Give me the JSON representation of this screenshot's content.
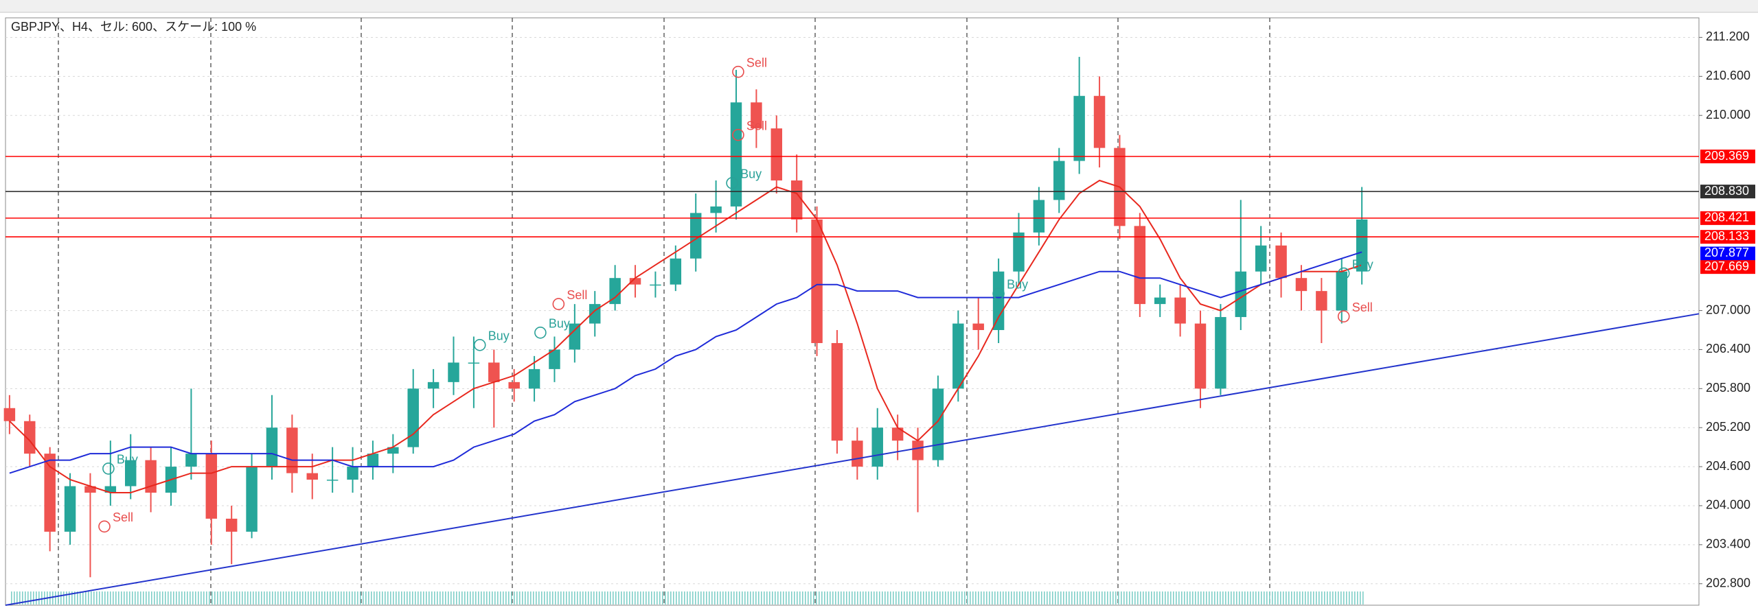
{
  "chart_data": {
    "type": "candlestick",
    "title": "GBPJPY、H4、セル: 600、スケール: 100 %",
    "xlim": [
      -0.2,
      83.7
    ],
    "ylim": [
      202.47,
      211.5
    ],
    "yticks": [
      {
        "value": 211.2,
        "label": "211.200"
      },
      {
        "value": 210.6,
        "label": "210.600"
      },
      {
        "value": 210,
        "label": "210.000"
      },
      {
        "value": 207,
        "label": "207.000"
      },
      {
        "value": 206.4,
        "label": "206.400"
      },
      {
        "value": 205.8,
        "label": "205.800"
      },
      {
        "value": 205.2,
        "label": "205.200"
      },
      {
        "value": 204.6,
        "label": "204.600"
      },
      {
        "value": 204,
        "label": "204.000"
      },
      {
        "value": 203.4,
        "label": "203.400"
      },
      {
        "value": 202.8,
        "label": "202.800"
      }
    ],
    "grid": true,
    "up_color": "#26a69a",
    "down_color": "#ef5350",
    "candles": [
      [
        205.5,
        205.7,
        205.1,
        205.3
      ],
      [
        205.3,
        205.4,
        204.6,
        204.8
      ],
      [
        204.8,
        204.9,
        203.3,
        203.6
      ],
      [
        203.6,
        204.5,
        203.4,
        204.3
      ],
      [
        204.3,
        204.5,
        202.9,
        204.2
      ],
      [
        204.2,
        205.0,
        204.0,
        204.3
      ],
      [
        204.3,
        205.1,
        204.1,
        204.7
      ],
      [
        204.7,
        204.9,
        203.9,
        204.2
      ],
      [
        204.2,
        204.9,
        204.0,
        204.6
      ],
      [
        204.6,
        205.8,
        204.4,
        204.8
      ],
      [
        204.8,
        205.0,
        203.4,
        203.8
      ],
      [
        203.8,
        204.0,
        203.1,
        203.6
      ],
      [
        203.6,
        204.8,
        203.5,
        204.6
      ],
      [
        204.6,
        205.7,
        204.4,
        205.2
      ],
      [
        205.2,
        205.4,
        204.2,
        204.5
      ],
      [
        204.5,
        204.8,
        204.1,
        204.4
      ],
      [
        204.4,
        204.9,
        204.2,
        204.4
      ],
      [
        204.4,
        204.9,
        204.2,
        204.6
      ],
      [
        204.6,
        205.0,
        204.4,
        204.8
      ],
      [
        204.8,
        205.1,
        204.5,
        204.9
      ],
      [
        204.9,
        206.1,
        204.8,
        205.8
      ],
      [
        205.8,
        206.1,
        205.5,
        205.9
      ],
      [
        205.9,
        206.6,
        205.7,
        206.2
      ],
      [
        206.2,
        206.6,
        205.5,
        206.2
      ],
      [
        206.2,
        206.4,
        205.2,
        205.9
      ],
      [
        205.9,
        206.1,
        205.6,
        205.8
      ],
      [
        205.8,
        206.3,
        205.6,
        206.1
      ],
      [
        206.1,
        206.6,
        205.9,
        206.4
      ],
      [
        206.4,
        207.1,
        206.2,
        206.8
      ],
      [
        206.8,
        207.3,
        206.6,
        207.1
      ],
      [
        207.1,
        207.7,
        207.0,
        207.5
      ],
      [
        207.5,
        207.7,
        207.2,
        207.4
      ],
      [
        207.4,
        207.6,
        207.2,
        207.4
      ],
      [
        207.4,
        208.0,
        207.3,
        207.8
      ],
      [
        207.8,
        208.8,
        207.6,
        208.5
      ],
      [
        208.5,
        209.0,
        208.2,
        208.6
      ],
      [
        208.6,
        210.7,
        208.4,
        210.2
      ],
      [
        210.2,
        210.4,
        209.5,
        209.8
      ],
      [
        209.8,
        210.0,
        208.8,
        209.0
      ],
      [
        209.0,
        209.4,
        208.2,
        208.4
      ],
      [
        208.4,
        208.6,
        206.3,
        206.5
      ],
      [
        206.5,
        206.7,
        204.8,
        205.0
      ],
      [
        205.0,
        205.2,
        204.4,
        204.6
      ],
      [
        204.6,
        205.5,
        204.4,
        205.2
      ],
      [
        205.2,
        205.4,
        204.7,
        205.0
      ],
      [
        205.0,
        205.2,
        203.9,
        204.7
      ],
      [
        204.7,
        206.0,
        204.6,
        205.8
      ],
      [
        205.8,
        207.0,
        205.6,
        206.8
      ],
      [
        206.8,
        207.2,
        206.4,
        206.7
      ],
      [
        206.7,
        207.8,
        206.5,
        207.6
      ],
      [
        207.6,
        208.5,
        207.4,
        208.2
      ],
      [
        208.2,
        208.9,
        208.0,
        208.7
      ],
      [
        208.7,
        209.5,
        208.5,
        209.3
      ],
      [
        209.3,
        210.9,
        209.1,
        210.3
      ],
      [
        210.3,
        210.6,
        209.2,
        209.5
      ],
      [
        209.5,
        209.7,
        208.1,
        208.3
      ],
      [
        208.3,
        208.5,
        206.9,
        207.1
      ],
      [
        207.1,
        207.4,
        206.9,
        207.2
      ],
      [
        207.2,
        207.4,
        206.6,
        206.8
      ],
      [
        206.8,
        207.0,
        205.5,
        205.8
      ],
      [
        205.8,
        207.1,
        205.7,
        206.9
      ],
      [
        206.9,
        208.7,
        206.7,
        207.6
      ],
      [
        207.6,
        208.3,
        207.4,
        208.0
      ],
      [
        208.0,
        208.2,
        207.2,
        207.5
      ],
      [
        207.5,
        207.7,
        207.0,
        207.3
      ],
      [
        207.3,
        207.5,
        206.5,
        207.0
      ],
      [
        207.0,
        207.8,
        206.8,
        207.6
      ],
      [
        207.6,
        208.9,
        207.4,
        208.4
      ]
    ],
    "series": [
      {
        "color": "#e8281e",
        "values": [
          205.3,
          205.0,
          204.6,
          204.4,
          204.3,
          204.2,
          204.2,
          204.3,
          204.4,
          204.5,
          204.5,
          204.6,
          204.6,
          204.6,
          204.6,
          204.6,
          204.7,
          204.7,
          204.8,
          204.9,
          205.1,
          205.4,
          205.6,
          205.8,
          205.9,
          206.0,
          206.2,
          206.4,
          206.7,
          207.0,
          207.2,
          207.5,
          207.7,
          207.9,
          208.1,
          208.3,
          208.5,
          208.7,
          208.9,
          208.8,
          208.4,
          207.7,
          206.8,
          205.8,
          205.2,
          205.0,
          205.3,
          205.8,
          206.3,
          206.9,
          207.4,
          207.9,
          208.4,
          208.8,
          209.0,
          208.9,
          208.6,
          208.1,
          207.5,
          207.1,
          207.0,
          207.2,
          207.4,
          207.5,
          207.6,
          207.6,
          207.6,
          207.7
        ]
      },
      {
        "color": "#1e2ad8",
        "values": [
          204.5,
          204.6,
          204.7,
          204.7,
          204.8,
          204.8,
          204.9,
          204.9,
          204.9,
          204.8,
          204.8,
          204.8,
          204.8,
          204.8,
          204.7,
          204.7,
          204.7,
          204.6,
          204.6,
          204.6,
          204.6,
          204.6,
          204.7,
          204.9,
          205.0,
          205.1,
          205.3,
          205.4,
          205.6,
          205.7,
          205.8,
          206.0,
          206.1,
          206.3,
          206.4,
          206.6,
          206.7,
          206.9,
          207.1,
          207.2,
          207.4,
          207.4,
          207.3,
          207.3,
          207.3,
          207.2,
          207.2,
          207.2,
          207.2,
          207.2,
          207.2,
          207.3,
          207.4,
          207.5,
          207.6,
          207.6,
          207.5,
          207.5,
          207.4,
          207.3,
          207.2,
          207.3,
          207.4,
          207.5,
          207.6,
          207.7,
          207.8,
          207.9
        ]
      }
    ],
    "trendline": {
      "x": [
        -0.2,
        83.7
      ],
      "y": [
        202.47,
        206.95
      ],
      "color": "#2233cc"
    },
    "levels": [
      {
        "value": 209.369,
        "color": "#ff0000",
        "line": true
      },
      {
        "value": 208.83,
        "label": "208.830",
        "color": "#303030",
        "line": true
      },
      {
        "value": 208.421,
        "color": "#ff0000",
        "line": true
      },
      {
        "value": 208.133,
        "color": "#ff0000",
        "line": true
      },
      {
        "value": 207.877,
        "color": "#0000ff",
        "line": false
      },
      {
        "value": 207.669,
        "color": "#ff0000",
        "line": false
      }
    ],
    "signals": [
      {
        "x": 4.7,
        "y": 203.68,
        "label": "Sell",
        "color": "#e84c4c"
      },
      {
        "x": 4.9,
        "y": 204.57,
        "label": "Buy",
        "color": "#2aa198"
      },
      {
        "x": 23.3,
        "y": 206.47,
        "label": "Buy",
        "color": "#2aa198"
      },
      {
        "x": 26.3,
        "y": 206.66,
        "label": "Buy",
        "color": "#2aa198"
      },
      {
        "x": 27.2,
        "y": 207.1,
        "label": "Sell",
        "color": "#e84c4c"
      },
      {
        "x": 36.1,
        "y": 210.67,
        "label": "Sell",
        "color": "#e84c4c"
      },
      {
        "x": 36.1,
        "y": 209.7,
        "label": "Sell",
        "color": "#e84c4c"
      },
      {
        "x": 35.8,
        "y": 208.96,
        "label": "Buy",
        "color": "#2aa198"
      },
      {
        "x": 49,
        "y": 207.26,
        "label": "Buy",
        "color": "#2aa198"
      },
      {
        "x": 66.1,
        "y": 207.57,
        "label": "Buy",
        "color": "#2aa198"
      },
      {
        "x": 66.1,
        "y": 206.91,
        "label": "Sell",
        "color": "#e84c4c"
      }
    ]
  }
}
